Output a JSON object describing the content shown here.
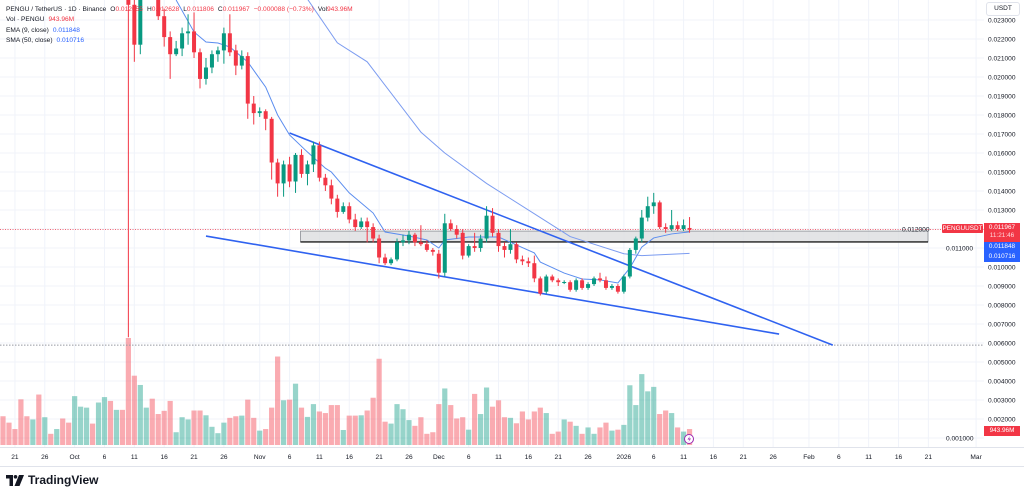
{
  "legend": {
    "symbol_line": "PENGU / TetherUS · 1D · Binance",
    "o_label": "O",
    "o_value": "0.012055",
    "h_label": "H",
    "h_value": "0.012628",
    "l_label": "L",
    "l_value": "0.011806",
    "c_label": "C",
    "c_value": "0.011967",
    "change": "−0.000088 (−0.73%)",
    "vol_label": "Vol",
    "vol_value": "943.96M",
    "volume_line_label": "Vol · PENGU",
    "volume_line_value": "943.96M",
    "ema_label": "EMA (9, close)",
    "ema_value": "0.011848",
    "sma_label": "SMA (50, close)",
    "sma_value": "0.010716"
  },
  "currency_button": "USDT",
  "tags": {
    "symbol": "PENGUUSDT",
    "price": "0.011967",
    "countdown": "11:21:46",
    "ema": "0.011848",
    "sma": "0.010716",
    "volume": "943.96M"
  },
  "colors": {
    "up": "#089981",
    "down": "#f23645",
    "ema": "#5b8def",
    "sma": "#7c9cf0",
    "trendline": "#2f62f0",
    "zone_fill": "#dcdde0",
    "zone_border": "#1e1e1e"
  },
  "brand": "TradingView",
  "chart_data": {
    "type": "candlestick",
    "title": "PENGU / TetherUS · 1D · Binance",
    "price_axis": {
      "unit": "USDT",
      "labels": [
        "0.023000",
        "0.022000",
        "0.021000",
        "0.020000",
        "0.019000",
        "0.018000",
        "0.017000",
        "0.016000",
        "0.015000",
        "0.014000",
        "0.013000",
        "0.012000",
        "0.011000",
        "0.010000",
        "0.009000",
        "0.008000",
        "0.007000",
        "0.006000",
        "0.005000",
        "0.004000",
        "0.003000",
        "0.002000",
        "0.001000"
      ]
    },
    "time_axis": [
      {
        "label": "21",
        "date": "Sep 21"
      },
      {
        "label": "26",
        "date": "Sep 26"
      },
      {
        "label": "Oct",
        "date": "Oct 1"
      },
      {
        "label": "6",
        "date": "Oct 6"
      },
      {
        "label": "11",
        "date": "Oct 11"
      },
      {
        "label": "16",
        "date": "Oct 16"
      },
      {
        "label": "21",
        "date": "Oct 21"
      },
      {
        "label": "26",
        "date": "Oct 26"
      },
      {
        "label": "Nov",
        "date": "Nov 1"
      },
      {
        "label": "6",
        "date": "Nov 6"
      },
      {
        "label": "11",
        "date": "Nov 11"
      },
      {
        "label": "16",
        "date": "Nov 16"
      },
      {
        "label": "21",
        "date": "Nov 21"
      },
      {
        "label": "26",
        "date": "Nov 26"
      },
      {
        "label": "Dec",
        "date": "Dec 1"
      },
      {
        "label": "6",
        "date": "Dec 6"
      },
      {
        "label": "11",
        "date": "Dec 11"
      },
      {
        "label": "16",
        "date": "Dec 16"
      },
      {
        "label": "21",
        "date": "Dec 21"
      },
      {
        "label": "26",
        "date": "Dec 26"
      },
      {
        "label": "2026",
        "date": "Jan 1"
      },
      {
        "label": "6",
        "date": "Jan 6"
      },
      {
        "label": "11",
        "date": "Jan 11"
      },
      {
        "label": "16",
        "date": "Jan 16"
      },
      {
        "label": "21",
        "date": "Jan 21"
      },
      {
        "label": "26",
        "date": "Jan 26"
      },
      {
        "label": "Feb",
        "date": "Feb 1"
      },
      {
        "label": "6",
        "date": "Feb 6"
      },
      {
        "label": "11",
        "date": "Feb 11"
      },
      {
        "label": "16",
        "date": "Feb 16"
      },
      {
        "label": "21",
        "date": "Feb 21"
      },
      {
        "label": "Mar",
        "date": "Mar 1"
      }
    ],
    "candles_first_date": "Oct 10",
    "candles_ohlc": [
      [
        0.0262,
        0.0268,
        0.0063,
        0.0238
      ],
      [
        0.0238,
        0.0245,
        0.0208,
        0.0217
      ],
      [
        0.0217,
        0.0252,
        0.0212,
        0.0246
      ],
      [
        0.0246,
        0.0258,
        0.0242,
        0.0252
      ],
      [
        0.0252,
        0.0256,
        0.0243,
        0.0247
      ],
      [
        0.0247,
        0.025,
        0.023,
        0.0232
      ],
      [
        0.0232,
        0.0236,
        0.0216,
        0.0221
      ],
      [
        0.0221,
        0.0224,
        0.0199,
        0.0212
      ],
      [
        0.0212,
        0.0219,
        0.0211,
        0.0215
      ],
      [
        0.0215,
        0.0226,
        0.0211,
        0.0223
      ],
      [
        0.0223,
        0.0233,
        0.0217,
        0.0224
      ],
      [
        0.0224,
        0.0234,
        0.021,
        0.0213
      ],
      [
        0.0213,
        0.0215,
        0.0194,
        0.0199
      ],
      [
        0.0199,
        0.021,
        0.0196,
        0.0205
      ],
      [
        0.0205,
        0.0214,
        0.0202,
        0.0212
      ],
      [
        0.0212,
        0.0216,
        0.0208,
        0.0214
      ],
      [
        0.0214,
        0.0226,
        0.0207,
        0.0223
      ],
      [
        0.0223,
        0.0233,
        0.0211,
        0.0213
      ],
      [
        0.0214,
        0.0217,
        0.0201,
        0.0206
      ],
      [
        0.0206,
        0.0214,
        0.0204,
        0.0211
      ],
      [
        0.0211,
        0.0213,
        0.0178,
        0.0186
      ],
      [
        0.0186,
        0.019,
        0.0175,
        0.0181
      ],
      [
        0.0181,
        0.0184,
        0.0179,
        0.0182
      ],
      [
        0.0182,
        0.0183,
        0.0172,
        0.0178
      ],
      [
        0.0178,
        0.0179,
        0.0146,
        0.0155
      ],
      [
        0.0155,
        0.0157,
        0.0137,
        0.0144
      ],
      [
        0.0144,
        0.0156,
        0.0137,
        0.0154
      ],
      [
        0.0154,
        0.0158,
        0.0142,
        0.0145
      ],
      [
        0.0145,
        0.016,
        0.0139,
        0.0159
      ],
      [
        0.0159,
        0.0162,
        0.0147,
        0.0149
      ],
      [
        0.0149,
        0.0156,
        0.0143,
        0.0154
      ],
      [
        0.0154,
        0.0166,
        0.015,
        0.0164
      ],
      [
        0.0164,
        0.0166,
        0.0145,
        0.0147
      ],
      [
        0.0147,
        0.0149,
        0.014,
        0.0143
      ],
      [
        0.0143,
        0.0146,
        0.0133,
        0.0136
      ],
      [
        0.0136,
        0.0138,
        0.0126,
        0.0129
      ],
      [
        0.0129,
        0.0134,
        0.0128,
        0.0132
      ],
      [
        0.0132,
        0.0134,
        0.0123,
        0.0125
      ],
      [
        0.0125,
        0.0128,
        0.0119,
        0.0121
      ],
      [
        0.0121,
        0.0126,
        0.012,
        0.0124
      ],
      [
        0.0124,
        0.0126,
        0.0113,
        0.0121
      ],
      [
        0.0121,
        0.0123,
        0.0113,
        0.0115
      ],
      [
        0.0115,
        0.0117,
        0.0102,
        0.0105
      ],
      [
        0.0105,
        0.0107,
        0.0101,
        0.0102
      ],
      [
        0.0102,
        0.0105,
        0.0101,
        0.0104
      ],
      [
        0.0104,
        0.0115,
        0.0103,
        0.0113
      ],
      [
        0.0113,
        0.0117,
        0.0111,
        0.0114
      ],
      [
        0.0114,
        0.0119,
        0.0112,
        0.0117
      ],
      [
        0.0117,
        0.0118,
        0.0111,
        0.0113
      ],
      [
        0.0113,
        0.0122,
        0.0111,
        0.0112
      ],
      [
        0.0112,
        0.0114,
        0.0108,
        0.0109
      ],
      [
        0.0109,
        0.011,
        0.0106,
        0.0108
      ],
      [
        0.0107,
        0.0109,
        0.0094,
        0.0097
      ],
      [
        0.0097,
        0.0128,
        0.0095,
        0.0123
      ],
      [
        0.0123,
        0.0125,
        0.0119,
        0.012
      ],
      [
        0.012,
        0.0122,
        0.0115,
        0.0117
      ],
      [
        0.0118,
        0.012,
        0.0104,
        0.0106
      ],
      [
        0.0106,
        0.0112,
        0.0105,
        0.0111
      ],
      [
        0.0111,
        0.0118,
        0.0108,
        0.011
      ],
      [
        0.011,
        0.0117,
        0.0108,
        0.0115
      ],
      [
        0.0115,
        0.0132,
        0.0113,
        0.0127
      ],
      [
        0.0127,
        0.0131,
        0.0116,
        0.0118
      ],
      [
        0.0118,
        0.012,
        0.0108,
        0.0111
      ],
      [
        0.0111,
        0.0113,
        0.0105,
        0.0109
      ],
      [
        0.0109,
        0.012,
        0.0107,
        0.0112
      ],
      [
        0.0112,
        0.0113,
        0.0102,
        0.0104
      ],
      [
        0.0104,
        0.0106,
        0.0101,
        0.0103
      ],
      [
        0.0103,
        0.0105,
        0.01,
        0.0102
      ],
      [
        0.0102,
        0.0106,
        0.0092,
        0.0094
      ],
      [
        0.0094,
        0.0095,
        0.0085,
        0.0086
      ],
      [
        0.0087,
        0.0096,
        0.0086,
        0.0095
      ],
      [
        0.0095,
        0.0096,
        0.0092,
        0.0093
      ],
      [
        0.0093,
        0.0094,
        0.009,
        0.0092
      ],
      [
        0.0092,
        0.0093,
        0.0091,
        0.00921
      ],
      [
        0.0092,
        0.0093,
        0.0087,
        0.0088
      ],
      [
        0.0088,
        0.0094,
        0.0087,
        0.0093
      ],
      [
        0.0093,
        0.0094,
        0.0088,
        0.0089
      ],
      [
        0.0089,
        0.0092,
        0.0088,
        0.0091
      ],
      [
        0.0091,
        0.0095,
        0.009,
        0.0094
      ],
      [
        0.0094,
        0.0097,
        0.0092,
        0.0093
      ],
      [
        0.0093,
        0.0095,
        0.0088,
        0.0089
      ],
      [
        0.0089,
        0.0091,
        0.0088,
        0.009
      ],
      [
        0.009,
        0.0091,
        0.0086,
        0.0087
      ],
      [
        0.0087,
        0.0096,
        0.0086,
        0.0095
      ],
      [
        0.0095,
        0.011,
        0.0094,
        0.0109
      ],
      [
        0.0109,
        0.0116,
        0.0107,
        0.0115
      ],
      [
        0.0115,
        0.013,
        0.0113,
        0.0126
      ],
      [
        0.0126,
        0.0137,
        0.0124,
        0.0132
      ],
      [
        0.0132,
        0.0139,
        0.0128,
        0.0134
      ],
      [
        0.0134,
        0.0135,
        0.012,
        0.0121
      ],
      [
        0.0121,
        0.0123,
        0.0118,
        0.012
      ],
      [
        0.012,
        0.013,
        0.0119,
        0.0122
      ],
      [
        0.0122,
        0.0124,
        0.0119,
        0.012
      ],
      [
        0.012,
        0.0125,
        0.0119,
        0.0122
      ],
      [
        0.012055,
        0.012628,
        0.011806,
        0.011967
      ]
    ],
    "volume_first_date": "Sep 19",
    "volume_unit": "M",
    "volume_values": [
      1700,
      1322,
      944,
      2700,
      1700,
      1510,
      2983,
      1643,
      661,
      944,
      1567,
      1322,
      2889,
      2266,
      2209,
      1265,
      2511,
      2832,
      2605,
      2077,
      2077,
      6325,
      4097,
      3549,
      2209,
      2738,
      1831,
      2020,
      2605,
      755,
      1643,
      1510,
      2039,
      2039,
      1756,
      1076,
      699,
      1322,
      1605,
      1699,
      1737,
      2681,
      1605,
      850,
      944,
      2209,
      5230,
      2643,
      2681,
      3625,
      2209,
      1661,
      2417,
      1982,
      1888,
      2360,
      2360,
      887,
      1737,
      1737,
      1756,
      2039,
      2794,
      5098,
      1378,
      1265,
      2417,
      2115,
      1473,
      1133,
      1643,
      661,
      755,
      2417,
      3342,
      2360,
      1567,
      1643,
      906,
      3021,
      1831,
      3398,
      2266,
      2643,
      1643,
      1605,
      1284,
      1982,
      1510,
      1982,
      2209,
      1888,
      661,
      793,
      1510,
      1378,
      1133,
      661,
      1038,
      661,
      1038,
      1322,
      850,
      906,
      1189,
      3531,
      2360,
      4191,
      3172,
      3436,
      1831,
      2039,
      1888,
      1038,
      793,
      943.96
    ],
    "volume_direction_before_candles": [
      "down",
      "down",
      "down",
      "down",
      "down",
      "up",
      "down",
      "up",
      "down",
      "up",
      "down",
      "down",
      "up",
      "up",
      "up",
      "down",
      "up",
      "up",
      "down",
      "up",
      "down"
    ],
    "ema_9": [
      [
        "Oct 18",
        0.02405
      ],
      [
        "Oct 21",
        0.02237
      ],
      [
        "Oct 23",
        0.02184
      ],
      [
        "Oct 25",
        0.02179
      ],
      [
        "Oct 27",
        0.02158
      ],
      [
        "Oct 30",
        0.02079
      ],
      [
        "Nov 2",
        0.01947
      ],
      [
        "Nov 4",
        0.018
      ],
      [
        "Nov 6",
        0.01695
      ],
      [
        "Nov 9",
        0.01605
      ],
      [
        "Nov 12",
        0.0152
      ],
      [
        "Nov 13",
        0.015
      ],
      [
        "Nov 16",
        0.0139
      ],
      [
        "Nov 20",
        0.01284
      ],
      [
        "Nov 22",
        0.01184
      ],
      [
        "Nov 26",
        0.01163
      ],
      [
        "Nov 29",
        0.01142
      ],
      [
        "Dec 1",
        0.011
      ],
      [
        "Dec 2",
        0.01142
      ],
      [
        "Dec 6",
        0.01158
      ],
      [
        "Dec 11",
        0.01158
      ],
      [
        "Dec 14",
        0.01116
      ],
      [
        "Dec 17",
        0.01074
      ],
      [
        "Dec 18",
        0.01026
      ],
      [
        "Dec 22",
        0.00968
      ],
      [
        "Dec 25",
        0.00937
      ],
      [
        "Dec 28",
        0.00932
      ],
      [
        "Dec 31",
        0.00916
      ],
      [
        "Jan 2",
        0.00995
      ],
      [
        "Jan 4",
        0.01105
      ],
      [
        "Jan 6",
        0.01153
      ],
      [
        "Jan 9",
        0.01174
      ],
      [
        "Jan 12",
        0.011848
      ]
    ],
    "sma_50": [
      [
        "Nov 9",
        0.0241
      ],
      [
        "Nov 14",
        0.0218
      ],
      [
        "Nov 19",
        0.0208
      ],
      [
        "Nov 28",
        0.0171
      ],
      [
        "Dec 2",
        0.016
      ],
      [
        "Dec 9",
        0.0144
      ],
      [
        "Dec 18",
        0.0126
      ],
      [
        "Dec 23",
        0.0116
      ],
      [
        "Jan 1",
        0.0107
      ],
      [
        "Jan 4",
        0.0106
      ],
      [
        "Jan 12",
        0.010716
      ]
    ],
    "trendlines": [
      {
        "from": [
          "Nov 6",
          0.01705
        ],
        "to": [
          "Feb 5",
          0.00589
        ]
      },
      {
        "from": [
          "Oct 23",
          0.01163
        ],
        "to": [
          "Jan 27",
          0.00647
        ]
      }
    ],
    "zone": {
      "from_date": "Nov 8",
      "top": 0.01189,
      "bottom": 0.01132
    },
    "horizontal_line": 0.00589,
    "last_price": 0.011967
  }
}
